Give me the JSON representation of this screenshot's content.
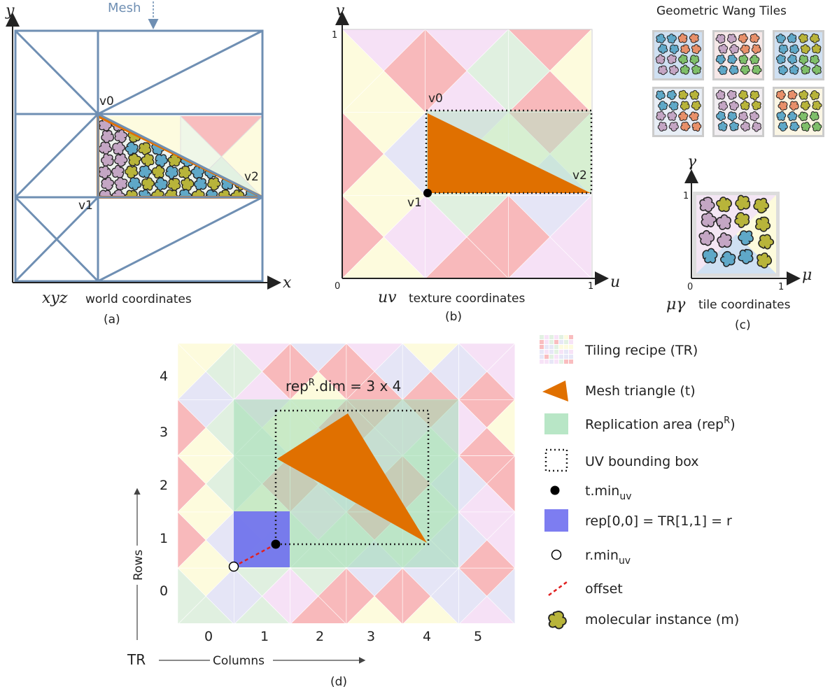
{
  "colors": {
    "mesh_blue": "#6f8fb3",
    "orange": "#e07000",
    "pink": "#f8b6b8",
    "yellow": "#fdfbdc",
    "green": "#dff0df",
    "lavender": "#e4e4f6",
    "violet": "#f6e0f6",
    "replication": "#b8e6c6",
    "rep_blue": "#6f6ff0",
    "mol_olive": "#b8b43a",
    "mol_teal": "#5fa8c8",
    "mol_mauve": "#c4a6c4",
    "mol_green": "#7fbf6a",
    "mol_salmon": "#e8906a"
  },
  "panel_a": {
    "mesh_label": "Mesh",
    "y_axis": "y",
    "x_axis": "x",
    "v0": "v0",
    "v1": "v1",
    "v2": "v2",
    "coord_math": "xyz",
    "coord_text": "world coordinates",
    "caption": "(a)"
  },
  "panel_b": {
    "u_axis": "u",
    "v_axis": "v",
    "tick_0": "0",
    "tick_1_u": "1",
    "tick_1_v": "1",
    "v0": "v0",
    "v1": "v1",
    "v2": "v2",
    "coord_math": "uv",
    "coord_text": "texture coordinates",
    "caption": "(b)"
  },
  "panel_c": {
    "title": "Geometric Wang Tiles",
    "gamma_axis": "γ",
    "mu_axis": "μ",
    "tick_0": "0",
    "tick_1_mu": "1",
    "tick_1_gamma": "1",
    "coord_math": "μγ",
    "coord_text": "tile coordinates",
    "caption": "(c)"
  },
  "panel_d": {
    "rep_dim_label": "rep",
    "rep_dim_sup": "R",
    "rep_dim_rest": ".dim = 3 x 4",
    "row_labels": [
      "4",
      "3",
      "2",
      "1",
      "0"
    ],
    "col_labels": [
      "0",
      "1",
      "2",
      "3",
      "4",
      "5"
    ],
    "rows_text": "Rows",
    "columns_text": "Columns",
    "tr_text": "TR",
    "caption": "(d)"
  },
  "legend": {
    "tiling_recipe": "Tiling recipe (TR)",
    "mesh_triangle": "Mesh triangle (t)",
    "replication_main": "Replication area (rep",
    "replication_sup": "R",
    "replication_end": ")",
    "uv_bbox": "UV bounding box",
    "t_min_main": "t.min",
    "t_min_sub": "uv",
    "rep00": "rep[0,0] = TR[1,1] = r",
    "r_min_main": "r.min",
    "r_min_sub": "uv",
    "offset": "offset",
    "molecular": "molecular instance (m)"
  }
}
